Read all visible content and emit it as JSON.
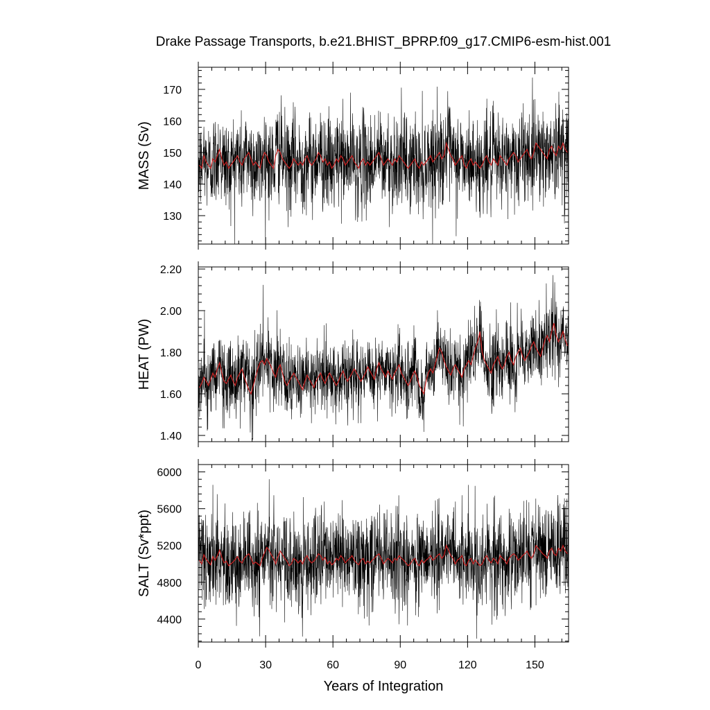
{
  "chart_data": {
    "type": "line",
    "title": "Drake Passage Transports, b.e21.BHIST_BPRP.f09_g17.CMIP6-esm-hist.001",
    "xlabel": "Years of Integration",
    "xlim": [
      0,
      165
    ],
    "xticks": [
      "0",
      "30",
      "60",
      "90",
      "120",
      "150"
    ],
    "grid": false,
    "series_colors": {
      "monthly": "#000000",
      "annual_mean": "#cc2222"
    },
    "panels": [
      {
        "ylabel": "MASS (Sv)",
        "ylim": [
          121,
          177
        ],
        "yticks": [
          "130",
          "140",
          "150",
          "160",
          "170"
        ],
        "mean": 146,
        "monthly_noise_sd": 7.5,
        "monthly_range": [
          121,
          176
        ],
        "annual_mean": [
          146,
          145,
          149,
          147,
          146,
          145,
          148,
          147,
          149,
          151,
          148,
          146,
          147,
          145,
          146,
          147,
          148,
          149,
          147,
          146,
          148,
          149,
          150,
          148,
          146,
          147,
          146,
          145,
          148,
          150,
          149,
          147,
          146,
          145,
          149,
          151,
          150,
          148,
          147,
          146,
          145,
          146,
          148,
          147,
          146,
          147,
          146,
          148,
          149,
          147,
          146,
          147,
          148,
          150,
          149,
          147,
          148,
          146,
          147,
          145,
          146,
          148,
          147,
          149,
          148,
          146,
          147,
          148,
          149,
          147,
          146,
          145,
          147,
          148,
          146,
          147,
          146,
          147,
          148,
          149,
          150,
          148,
          146,
          147,
          148,
          147,
          146,
          148,
          147,
          149,
          148,
          147,
          146,
          145,
          146,
          147,
          148,
          146,
          145,
          147,
          146,
          147,
          148,
          149,
          147,
          148,
          149,
          150,
          148,
          149,
          153,
          151,
          149,
          148,
          146,
          147,
          148,
          149,
          146,
          145,
          147,
          148,
          146,
          147,
          146,
          145,
          146,
          148,
          149,
          147,
          146,
          148,
          147,
          146,
          149,
          148,
          147,
          146,
          148,
          149,
          150,
          149,
          147,
          148,
          149,
          150,
          151,
          149,
          148,
          150,
          153,
          152,
          151,
          150,
          149,
          148,
          151,
          152,
          150,
          149,
          152,
          151,
          153,
          151,
          150
        ]
      },
      {
        "ylabel": "HEAT (PW)",
        "ylim": [
          1.37,
          2.21
        ],
        "yticks": [
          "1.40",
          "1.60",
          "1.80",
          "2.00",
          "2.20"
        ],
        "mean": 1.67,
        "monthly_noise_sd": 0.09,
        "monthly_range": [
          1.38,
          2.2
        ],
        "annual_mean": [
          1.63,
          1.65,
          1.68,
          1.66,
          1.64,
          1.67,
          1.7,
          1.68,
          1.72,
          1.75,
          1.7,
          1.66,
          1.65,
          1.67,
          1.69,
          1.66,
          1.64,
          1.68,
          1.7,
          1.72,
          1.68,
          1.65,
          1.62,
          1.6,
          1.64,
          1.68,
          1.72,
          1.75,
          1.76,
          1.74,
          1.77,
          1.75,
          1.73,
          1.7,
          1.68,
          1.72,
          1.74,
          1.7,
          1.66,
          1.64,
          1.66,
          1.68,
          1.7,
          1.68,
          1.66,
          1.64,
          1.62,
          1.66,
          1.69,
          1.67,
          1.65,
          1.63,
          1.66,
          1.68,
          1.7,
          1.67,
          1.65,
          1.68,
          1.7,
          1.68,
          1.66,
          1.64,
          1.66,
          1.69,
          1.71,
          1.68,
          1.66,
          1.68,
          1.7,
          1.72,
          1.7,
          1.68,
          1.66,
          1.68,
          1.7,
          1.73,
          1.71,
          1.69,
          1.67,
          1.72,
          1.75,
          1.72,
          1.7,
          1.68,
          1.71,
          1.69,
          1.67,
          1.7,
          1.72,
          1.74,
          1.7,
          1.68,
          1.66,
          1.64,
          1.66,
          1.69,
          1.71,
          1.68,
          1.64,
          1.62,
          1.6,
          1.66,
          1.7,
          1.72,
          1.7,
          1.74,
          1.78,
          1.82,
          1.8,
          1.76,
          1.73,
          1.71,
          1.69,
          1.72,
          1.74,
          1.72,
          1.7,
          1.68,
          1.72,
          1.74,
          1.76,
          1.74,
          1.78,
          1.82,
          1.85,
          1.9,
          1.8,
          1.76,
          1.74,
          1.72,
          1.7,
          1.74,
          1.76,
          1.78,
          1.74,
          1.72,
          1.74,
          1.78,
          1.8,
          1.76,
          1.74,
          1.78,
          1.8,
          1.82,
          1.78,
          1.76,
          1.78,
          1.8,
          1.83,
          1.85,
          1.82,
          1.8,
          1.78,
          1.82,
          1.86,
          1.88,
          1.85,
          1.9,
          1.94,
          1.88,
          1.85,
          1.87,
          1.9,
          1.86,
          1.83
        ]
      },
      {
        "ylabel": "SALT (Sv*ppt)",
        "ylim": [
          4150,
          6080
        ],
        "yticks": [
          "4400",
          "4800",
          "5200",
          "5600",
          "6000"
        ],
        "mean": 5040,
        "monthly_noise_sd": 260,
        "monthly_range": [
          4160,
          6060
        ],
        "annual_mean": [
          5040,
          5000,
          5100,
          5050,
          5020,
          4990,
          5080,
          5040,
          5090,
          5150,
          5070,
          5010,
          5030,
          4980,
          5000,
          5020,
          5050,
          5080,
          5030,
          5010,
          5060,
          5090,
          5110,
          5060,
          5000,
          5020,
          5000,
          4980,
          5060,
          5120,
          5180,
          5150,
          5100,
          5060,
          5000,
          5080,
          5140,
          5100,
          5060,
          5030,
          4980,
          5000,
          5060,
          5040,
          5010,
          5040,
          5000,
          5060,
          5090,
          5040,
          5010,
          5030,
          5060,
          5110,
          5090,
          5040,
          5070,
          5000,
          5030,
          4990,
          5010,
          5060,
          5040,
          5090,
          5060,
          5010,
          5040,
          5060,
          5090,
          5040,
          5010,
          4990,
          5040,
          5060,
          5000,
          5030,
          5010,
          5040,
          5060,
          5090,
          5110,
          5060,
          5000,
          5030,
          5060,
          5040,
          5010,
          5060,
          5040,
          5090,
          5060,
          5040,
          5010,
          4980,
          5000,
          5040,
          5060,
          5000,
          4980,
          5040,
          5010,
          5040,
          5060,
          5090,
          5040,
          5060,
          5090,
          5110,
          5060,
          5090,
          5200,
          5150,
          5090,
          5060,
          5000,
          5040,
          5060,
          5090,
          5000,
          4980,
          5040,
          5060,
          5000,
          5040,
          5010,
          4980,
          5000,
          5060,
          5090,
          5040,
          5010,
          5060,
          5040,
          5000,
          5090,
          5060,
          5040,
          5000,
          5060,
          5090,
          5110,
          5090,
          5040,
          5060,
          5090,
          5110,
          5140,
          5090,
          5060,
          5110,
          5200,
          5170,
          5140,
          5110,
          5090,
          5060,
          5140,
          5170,
          5110,
          5090,
          5170,
          5140,
          5200,
          5140,
          5110
        ]
      }
    ]
  }
}
